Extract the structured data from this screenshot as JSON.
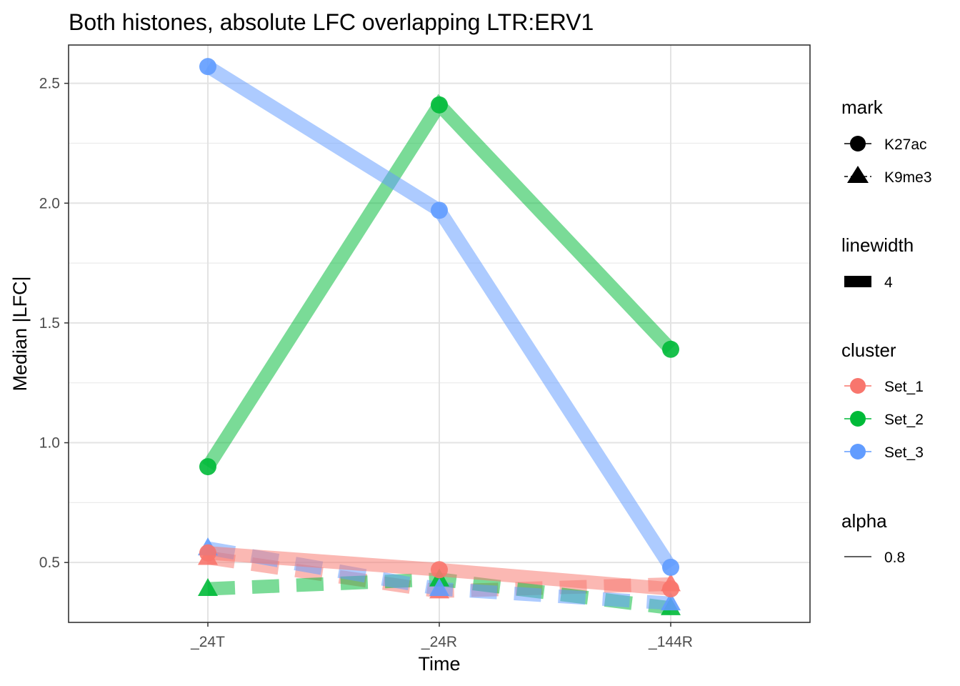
{
  "chart_data": {
    "type": "line",
    "title": "Both histones, absolute LFC overlapping LTR:ERV1",
    "xlabel": "Time",
    "ylabel": "Median |LFC|",
    "categories": [
      "_24T",
      "_24R",
      "_144R"
    ],
    "yticks": [
      0.5,
      1.0,
      1.5,
      2.0,
      2.5
    ],
    "ytick_labels": [
      "0.5",
      "1.0",
      "1.5",
      "2.0",
      "2.5"
    ],
    "ylim": [
      0.25,
      2.66
    ],
    "grid": true,
    "legend_placement": "right",
    "series": [
      {
        "cluster": "Set_1",
        "mark": "K27ac",
        "color": "#F8766D",
        "values": [
          0.54,
          0.47,
          0.39
        ]
      },
      {
        "cluster": "Set_1",
        "mark": "K9me3",
        "color": "#F8766D",
        "values": [
          0.52,
          0.38,
          0.41
        ]
      },
      {
        "cluster": "Set_2",
        "mark": "K27ac",
        "color": "#00BA38",
        "values": [
          0.9,
          2.41,
          1.39
        ]
      },
      {
        "cluster": "Set_2",
        "mark": "K9me3",
        "color": "#00BA38",
        "values": [
          0.39,
          0.43,
          0.31
        ]
      },
      {
        "cluster": "Set_3",
        "mark": "K27ac",
        "color": "#619CFF",
        "values": [
          2.57,
          1.97,
          0.48
        ]
      },
      {
        "cluster": "Set_3",
        "mark": "K9me3",
        "color": "#619CFF",
        "values": [
          0.56,
          0.39,
          0.33
        ]
      }
    ],
    "legend": {
      "mark": {
        "title": "mark",
        "items": [
          "K27ac",
          "K9me3"
        ]
      },
      "linewidth": {
        "title": "linewidth",
        "items": [
          "4"
        ]
      },
      "cluster": {
        "title": "cluster",
        "items": [
          {
            "label": "Set_1",
            "color": "#F8766D"
          },
          {
            "label": "Set_2",
            "color": "#00BA38"
          },
          {
            "label": "Set_3",
            "color": "#619CFF"
          }
        ]
      },
      "alpha": {
        "title": "alpha",
        "items": [
          "0.8"
        ]
      }
    }
  }
}
